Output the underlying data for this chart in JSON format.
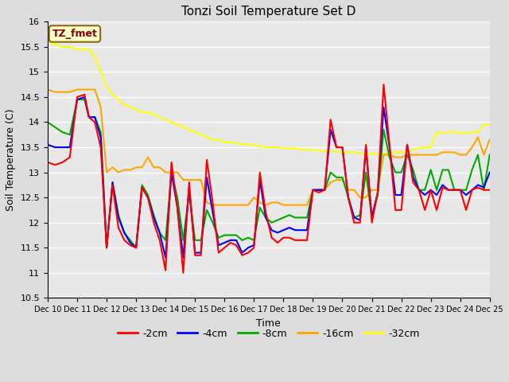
{
  "title": "Tonzi Soil Temperature Set D",
  "xlabel": "Time",
  "ylabel": "Soil Temperature (C)",
  "ylim": [
    10.5,
    16.0
  ],
  "yticks": [
    10.5,
    11.0,
    11.5,
    12.0,
    12.5,
    13.0,
    13.5,
    14.0,
    14.5,
    15.0,
    15.5,
    16.0
  ],
  "x_labels": [
    "Dec 10",
    "Dec 11",
    "Dec 12",
    "Dec 13",
    "Dec 14",
    "Dec 15",
    "Dec 16",
    "Dec 17",
    "Dec 18",
    "Dec 19",
    "Dec 20",
    "Dec 21",
    "Dec 22",
    "Dec 23",
    "Dec 24",
    "Dec 25"
  ],
  "annotation_text": "TZ_fmet",
  "annotation_color": "#8B0000",
  "annotation_bg": "#FFFFCC",
  "series": {
    "-2cm": {
      "color": "#FF0000",
      "x": [
        0,
        0.25,
        0.5,
        0.75,
        1.0,
        1.25,
        1.4,
        1.6,
        1.8,
        2.0,
        2.2,
        2.4,
        2.6,
        2.8,
        3.0,
        3.2,
        3.4,
        3.6,
        3.8,
        4.0,
        4.2,
        4.4,
        4.6,
        4.8,
        5.0,
        5.2,
        5.4,
        5.6,
        5.8,
        6.0,
        6.2,
        6.4,
        6.6,
        6.8,
        7.0,
        7.2,
        7.4,
        7.6,
        7.8,
        8.0,
        8.2,
        8.4,
        8.6,
        8.8,
        9.0,
        9.2,
        9.4,
        9.6,
        9.8,
        10.0,
        10.2,
        10.4,
        10.6,
        10.8,
        11.0,
        11.2,
        11.4,
        11.6,
        11.8,
        12.0,
        12.2,
        12.4,
        12.6,
        12.8,
        13.0,
        13.2,
        13.4,
        13.6,
        13.8,
        14.0,
        14.2,
        14.4,
        14.6,
        14.8,
        15.0
      ],
      "y": [
        13.2,
        13.15,
        13.2,
        13.3,
        14.5,
        14.55,
        14.1,
        14.0,
        13.5,
        11.5,
        12.75,
        11.9,
        11.65,
        11.55,
        11.5,
        12.7,
        12.5,
        12.0,
        11.65,
        11.05,
        13.2,
        12.3,
        11.0,
        12.8,
        11.35,
        11.35,
        13.25,
        12.4,
        11.4,
        11.5,
        11.6,
        11.55,
        11.35,
        11.4,
        11.5,
        13.0,
        12.2,
        11.7,
        11.6,
        11.7,
        11.7,
        11.65,
        11.65,
        11.65,
        12.65,
        12.6,
        12.65,
        14.05,
        13.5,
        13.5,
        12.5,
        12.0,
        12.0,
        13.55,
        12.0,
        12.6,
        14.75,
        13.55,
        12.25,
        12.25,
        13.55,
        12.8,
        12.65,
        12.25,
        12.65,
        12.25,
        12.7,
        12.65,
        12.65,
        12.65,
        12.25,
        12.65,
        12.7,
        12.65,
        12.65
      ]
    },
    "-4cm": {
      "color": "#0000FF",
      "x": [
        0,
        0.25,
        0.5,
        0.75,
        1.0,
        1.25,
        1.4,
        1.6,
        1.8,
        2.0,
        2.2,
        2.4,
        2.6,
        2.8,
        3.0,
        3.2,
        3.4,
        3.6,
        3.8,
        4.0,
        4.2,
        4.4,
        4.6,
        4.8,
        5.0,
        5.2,
        5.4,
        5.6,
        5.8,
        6.0,
        6.2,
        6.4,
        6.6,
        6.8,
        7.0,
        7.2,
        7.4,
        7.6,
        7.8,
        8.0,
        8.2,
        8.4,
        8.6,
        8.8,
        9.0,
        9.2,
        9.4,
        9.6,
        9.8,
        10.0,
        10.2,
        10.4,
        10.6,
        10.8,
        11.0,
        11.2,
        11.4,
        11.6,
        11.8,
        12.0,
        12.2,
        12.4,
        12.6,
        12.8,
        13.0,
        13.2,
        13.4,
        13.6,
        13.8,
        14.0,
        14.2,
        14.4,
        14.6,
        14.8,
        15.0
      ],
      "y": [
        13.55,
        13.5,
        13.5,
        13.5,
        14.45,
        14.5,
        14.1,
        14.1,
        13.7,
        11.5,
        12.8,
        12.1,
        11.8,
        11.6,
        11.5,
        12.7,
        12.5,
        12.1,
        11.8,
        11.3,
        13.0,
        12.3,
        11.3,
        12.7,
        11.4,
        11.4,
        12.9,
        12.2,
        11.55,
        11.6,
        11.65,
        11.65,
        11.4,
        11.5,
        11.55,
        12.85,
        12.1,
        11.85,
        11.8,
        11.85,
        11.9,
        11.85,
        11.85,
        11.85,
        12.65,
        12.65,
        12.65,
        13.85,
        13.5,
        13.5,
        12.5,
        12.1,
        12.05,
        13.5,
        12.1,
        12.6,
        14.3,
        13.5,
        12.55,
        12.55,
        13.55,
        12.9,
        12.65,
        12.55,
        12.65,
        12.55,
        12.75,
        12.65,
        12.65,
        12.65,
        12.55,
        12.65,
        12.75,
        12.7,
        13.0
      ]
    },
    "-8cm": {
      "color": "#00AA00",
      "x": [
        0,
        0.25,
        0.5,
        0.75,
        1.0,
        1.25,
        1.4,
        1.6,
        1.8,
        2.0,
        2.2,
        2.4,
        2.6,
        2.8,
        3.0,
        3.2,
        3.4,
        3.6,
        3.8,
        4.0,
        4.2,
        4.4,
        4.6,
        4.8,
        5.0,
        5.2,
        5.4,
        5.6,
        5.8,
        6.0,
        6.2,
        6.4,
        6.6,
        6.8,
        7.0,
        7.2,
        7.4,
        7.6,
        7.8,
        8.0,
        8.2,
        8.4,
        8.6,
        8.8,
        9.0,
        9.2,
        9.4,
        9.6,
        9.8,
        10.0,
        10.2,
        10.4,
        10.6,
        10.8,
        11.0,
        11.2,
        11.4,
        11.6,
        11.8,
        12.0,
        12.2,
        12.4,
        12.6,
        12.8,
        13.0,
        13.2,
        13.4,
        13.6,
        13.8,
        14.0,
        14.2,
        14.4,
        14.6,
        14.8,
        15.0
      ],
      "y": [
        14.0,
        13.9,
        13.8,
        13.75,
        14.45,
        14.45,
        14.1,
        14.1,
        13.8,
        11.5,
        12.8,
        12.15,
        11.8,
        11.65,
        11.5,
        12.75,
        12.55,
        12.15,
        11.8,
        11.65,
        13.0,
        12.5,
        11.65,
        12.6,
        11.65,
        11.65,
        12.25,
        12.0,
        11.7,
        11.75,
        11.75,
        11.75,
        11.65,
        11.7,
        11.65,
        12.3,
        12.1,
        12.0,
        12.05,
        12.1,
        12.15,
        12.1,
        12.1,
        12.1,
        12.65,
        12.65,
        12.65,
        13.0,
        12.9,
        12.9,
        12.5,
        12.1,
        12.15,
        13.0,
        12.1,
        12.55,
        13.85,
        13.3,
        13.0,
        13.0,
        13.35,
        13.05,
        12.65,
        12.65,
        13.05,
        12.65,
        13.05,
        13.05,
        12.65,
        12.65,
        12.65,
        13.05,
        13.35,
        12.65,
        13.35
      ]
    },
    "-16cm": {
      "color": "#FFA500",
      "x": [
        0,
        0.25,
        0.5,
        0.75,
        1.0,
        1.25,
        1.4,
        1.6,
        1.8,
        2.0,
        2.2,
        2.4,
        2.6,
        2.8,
        3.0,
        3.2,
        3.4,
        3.6,
        3.8,
        4.0,
        4.2,
        4.4,
        4.6,
        4.8,
        5.0,
        5.2,
        5.4,
        5.6,
        5.8,
        6.0,
        6.2,
        6.4,
        6.6,
        6.8,
        7.0,
        7.2,
        7.4,
        7.6,
        7.8,
        8.0,
        8.2,
        8.4,
        8.6,
        8.8,
        9.0,
        9.2,
        9.4,
        9.6,
        9.8,
        10.0,
        10.2,
        10.4,
        10.6,
        10.8,
        11.0,
        11.2,
        11.4,
        11.6,
        11.8,
        12.0,
        12.2,
        12.4,
        12.6,
        12.8,
        13.0,
        13.2,
        13.4,
        13.6,
        13.8,
        14.0,
        14.2,
        14.4,
        14.6,
        14.8,
        15.0
      ],
      "y": [
        14.65,
        14.6,
        14.6,
        14.6,
        14.65,
        14.65,
        14.65,
        14.65,
        14.3,
        13.0,
        13.1,
        13.0,
        13.05,
        13.05,
        13.1,
        13.1,
        13.3,
        13.1,
        13.1,
        13.0,
        13.0,
        13.0,
        12.85,
        12.85,
        12.85,
        12.85,
        12.4,
        12.35,
        12.35,
        12.35,
        12.35,
        12.35,
        12.35,
        12.35,
        12.5,
        12.4,
        12.35,
        12.4,
        12.4,
        12.35,
        12.35,
        12.35,
        12.35,
        12.35,
        12.65,
        12.65,
        12.65,
        12.8,
        12.85,
        12.85,
        12.65,
        12.65,
        12.5,
        12.5,
        12.65,
        12.65,
        13.35,
        13.35,
        13.3,
        13.3,
        13.35,
        13.35,
        13.35,
        13.35,
        13.35,
        13.35,
        13.4,
        13.4,
        13.4,
        13.35,
        13.35,
        13.5,
        13.7,
        13.35,
        13.65
      ]
    },
    "-32cm": {
      "color": "#FFFF00",
      "x": [
        0,
        0.25,
        0.5,
        0.75,
        1.0,
        1.25,
        1.4,
        1.6,
        1.8,
        2.0,
        2.2,
        2.4,
        2.6,
        2.8,
        3.0,
        3.2,
        3.4,
        3.6,
        3.8,
        4.0,
        4.2,
        4.4,
        4.6,
        4.8,
        5.0,
        5.2,
        5.4,
        5.6,
        5.8,
        6.0,
        6.2,
        6.4,
        6.6,
        6.8,
        7.0,
        7.2,
        7.4,
        7.6,
        7.8,
        8.0,
        8.2,
        8.4,
        8.6,
        8.8,
        9.0,
        9.2,
        9.4,
        9.6,
        9.8,
        10.0,
        10.2,
        10.4,
        10.6,
        10.8,
        11.0,
        11.2,
        11.4,
        11.6,
        11.8,
        12.0,
        12.2,
        12.4,
        12.6,
        12.8,
        13.0,
        13.2,
        13.4,
        13.6,
        13.8,
        14.0,
        14.2,
        14.4,
        14.6,
        14.8,
        15.0
      ],
      "y": [
        15.6,
        15.55,
        15.5,
        15.5,
        15.45,
        15.45,
        15.45,
        15.3,
        15.0,
        14.7,
        14.55,
        14.45,
        14.35,
        14.3,
        14.25,
        14.2,
        14.2,
        14.15,
        14.1,
        14.05,
        14.0,
        13.95,
        13.9,
        13.85,
        13.8,
        13.75,
        13.7,
        13.65,
        13.65,
        13.6,
        13.6,
        13.58,
        13.57,
        13.55,
        13.55,
        13.52,
        13.5,
        13.5,
        13.5,
        13.48,
        13.48,
        13.48,
        13.46,
        13.45,
        13.45,
        13.43,
        13.42,
        13.42,
        13.42,
        13.4,
        13.4,
        13.4,
        13.38,
        13.37,
        13.37,
        13.37,
        13.37,
        13.38,
        13.4,
        13.4,
        13.42,
        13.45,
        13.48,
        13.5,
        13.5,
        13.8,
        13.78,
        13.8,
        13.8,
        13.78,
        13.78,
        13.8,
        13.8,
        13.95,
        13.95
      ]
    }
  },
  "bg_color": "#DCDCDC",
  "plot_bg": "#E8E8E8",
  "grid_color": "#FFFFFF",
  "linewidth": 1.5
}
